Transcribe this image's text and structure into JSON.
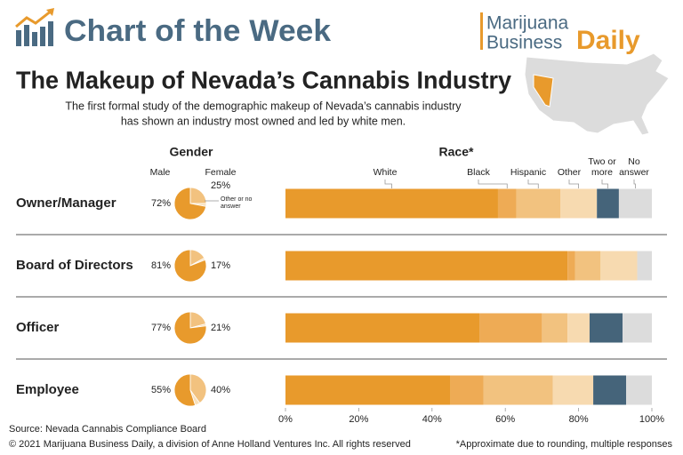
{
  "header": {
    "section": "Chart of the Week",
    "brand": {
      "line1": "Marijuana",
      "line2": "Business",
      "accent": "Daily"
    },
    "title": "The Makeup of Nevada’s Cannabis Industry",
    "subtitle": [
      "The first formal study of the demographic makeup of Nevada’s cannabis industry",
      "has shown an industry most owned and led by white men."
    ]
  },
  "chart_data": [
    {
      "type": "pie",
      "title": "Gender",
      "series": [
        {
          "name": "Male",
          "color": "#e89a2c",
          "values": [
            72,
            81,
            77,
            55
          ],
          "value_labels": [
            "72%",
            "81%",
            "77%",
            "55%"
          ]
        },
        {
          "name": "Female",
          "color": "#f2c27f",
          "values": [
            25,
            17,
            21,
            40
          ],
          "value_labels": [
            "25%",
            "17%",
            "21%",
            "40%"
          ]
        },
        {
          "name": "Other or no answer",
          "color": "#f8e0bb",
          "values": [
            3,
            2,
            2,
            5
          ]
        }
      ]
    },
    {
      "type": "bar",
      "title": "Race*",
      "categories": [
        "Owner/Manager",
        "Board of Directors",
        "Officer",
        "Employee"
      ],
      "series": [
        {
          "name": "White",
          "color": "#e89a2c",
          "values": [
            58,
            77,
            53,
            45
          ]
        },
        {
          "name": "Black",
          "color": "#eeab55",
          "values": [
            5,
            2,
            17,
            9
          ]
        },
        {
          "name": "Hispanic",
          "color": "#f2c27f",
          "values": [
            12,
            7,
            7,
            19
          ]
        },
        {
          "name": "Other",
          "color": "#f7dab0",
          "values": [
            10,
            10,
            6,
            11
          ]
        },
        {
          "name": "Two or more",
          "color": "#45647a",
          "values": [
            6,
            0,
            9,
            9
          ]
        },
        {
          "name": "No answer",
          "color": "#dcdcdc",
          "values": [
            9,
            4,
            8,
            7
          ]
        }
      ],
      "xlim": [
        0,
        100
      ],
      "xticks": [
        {
          "value": 0,
          "label": "0%"
        },
        {
          "value": 20,
          "label": "20%"
        },
        {
          "value": 40,
          "label": "40%"
        },
        {
          "value": 60,
          "label": "60%"
        },
        {
          "value": 80,
          "label": "80%"
        },
        {
          "value": 100,
          "label": "100%"
        }
      ]
    }
  ],
  "footer": {
    "source": "Source: Nevada Cannabis Compliance Board",
    "copyright": "© 2021 Marijuana Business Daily, a division of Anne Holland Ventures Inc. All rights reserved",
    "note": "*Approximate due to rounding, multiple responses"
  }
}
